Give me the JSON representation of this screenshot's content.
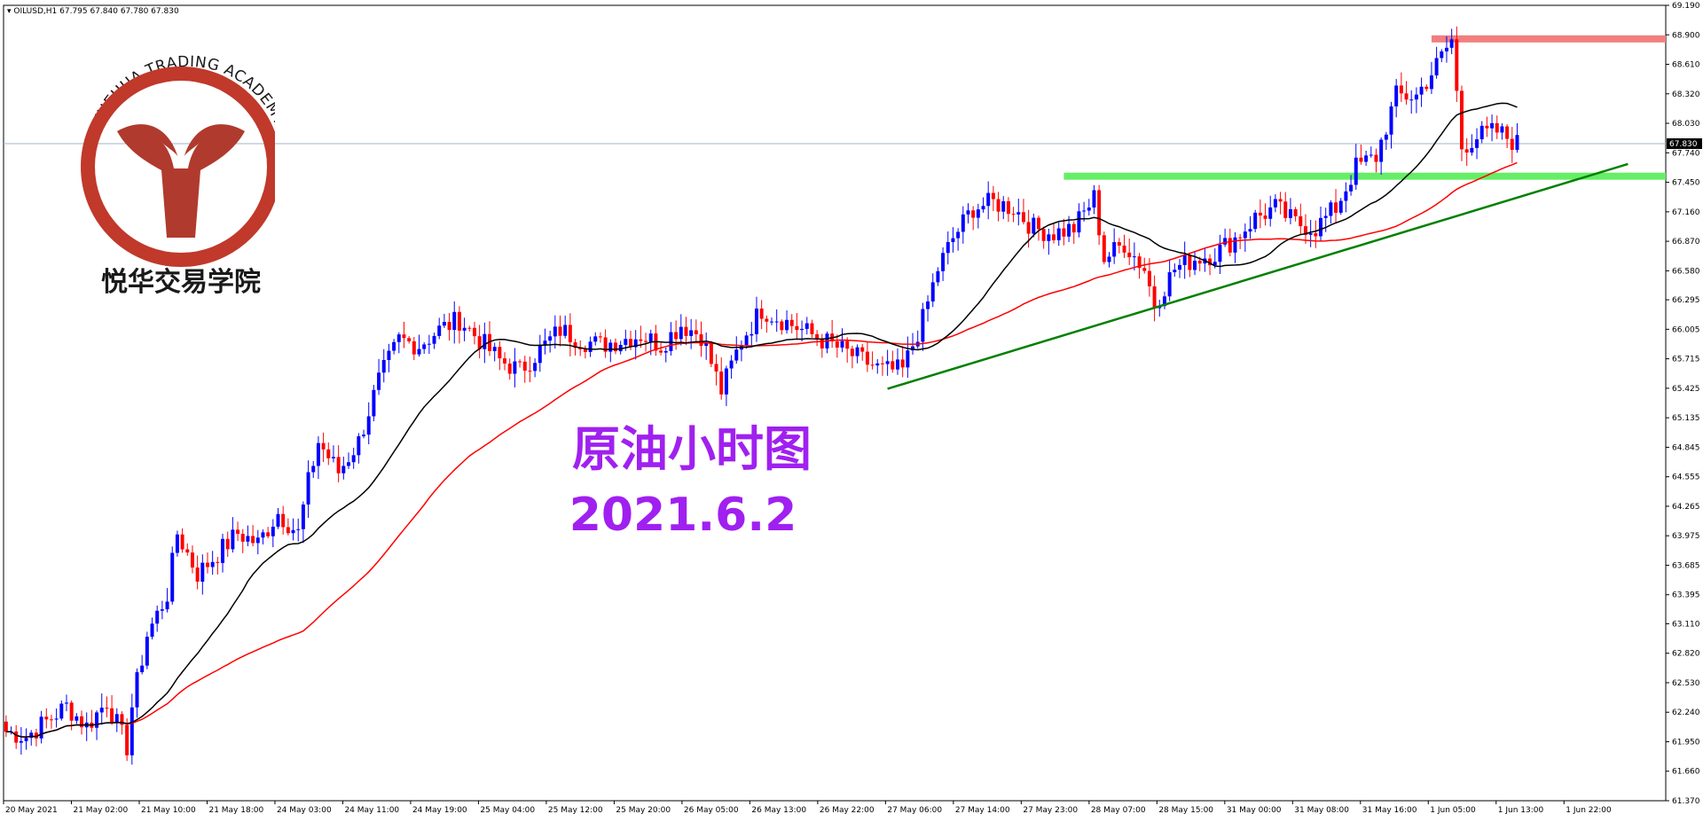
{
  "header": {
    "symbol_line": "OILUSD,H1  67.795 67.840 67.780 67.830"
  },
  "logo": {
    "arc_text": "YUEHUA TRADING ACADEMY",
    "chinese_text": "悦华交易学院",
    "colors": {
      "ring": "#c0392b",
      "mark": "#b03a2e",
      "text": "#1a1a1a"
    }
  },
  "annotation": {
    "title": "原油小时图",
    "date": "2021.6.2",
    "color": "#a020f0"
  },
  "price_label": "67.830",
  "chart_data": {
    "type": "candlestick",
    "title": "",
    "ylim": [
      61.37,
      69.19
    ],
    "y_ticks": [
      "69.190",
      "68.900",
      "68.610",
      "68.320",
      "68.030",
      "67.740",
      "67.450",
      "67.160",
      "66.870",
      "66.580",
      "66.295",
      "66.005",
      "65.715",
      "65.425",
      "65.135",
      "64.845",
      "64.555",
      "64.265",
      "63.975",
      "63.685",
      "63.395",
      "63.110",
      "62.820",
      "62.530",
      "62.240",
      "61.950",
      "61.660",
      "61.370"
    ],
    "x_labels": [
      "20 May 2021",
      "21 May 02:00",
      "21 May 10:00",
      "21 May 18:00",
      "24 May 03:00",
      "24 May 11:00",
      "24 May 19:00",
      "25 May 04:00",
      "25 May 12:00",
      "25 May 20:00",
      "26 May 05:00",
      "26 May 13:00",
      "26 May 22:00",
      "27 May 06:00",
      "27 May 14:00",
      "27 May 23:00",
      "28 May 07:00",
      "28 May 15:00",
      "31 May 00:00",
      "31 May 08:00",
      "31 May 16:00",
      "1 Jun 05:00",
      "1 Jun 13:00",
      "1 Jun 22:00"
    ],
    "last_price": 67.83,
    "current_price_line": 67.83,
    "colors": {
      "bull": "#0000ff",
      "bear": "#ff0000",
      "ma_fast": "#000000",
      "ma_slow": "#ff0000",
      "resistance": "#f08080",
      "support": "#66ee66",
      "trendline": "#008000",
      "price_line": "#a0b4c8"
    },
    "levels": {
      "resistance": 68.86,
      "support": 67.51
    },
    "trendline": {
      "from": {
        "bar": 175,
        "price": 65.42
      },
      "to": {
        "bar": 322,
        "price": 67.63
      }
    },
    "anchors": [
      [
        0,
        62.05
      ],
      [
        4,
        62.0
      ],
      [
        8,
        62.15
      ],
      [
        12,
        62.3
      ],
      [
        16,
        62.1
      ],
      [
        20,
        62.35
      ],
      [
        24,
        61.9
      ],
      [
        25,
        62.3
      ],
      [
        28,
        63.0
      ],
      [
        32,
        63.4
      ],
      [
        34,
        64.0
      ],
      [
        38,
        63.6
      ],
      [
        42,
        63.8
      ],
      [
        46,
        64.0
      ],
      [
        50,
        63.9
      ],
      [
        54,
        64.2
      ],
      [
        58,
        64.0
      ],
      [
        60,
        64.5
      ],
      [
        62,
        64.9
      ],
      [
        66,
        64.6
      ],
      [
        70,
        64.9
      ],
      [
        74,
        65.5
      ],
      [
        76,
        65.7
      ],
      [
        78,
        65.9
      ],
      [
        82,
        65.85
      ],
      [
        86,
        66.0
      ],
      [
        90,
        66.1
      ],
      [
        94,
        65.9
      ],
      [
        98,
        65.7
      ],
      [
        102,
        65.6
      ],
      [
        106,
        65.8
      ],
      [
        110,
        66.0
      ],
      [
        114,
        65.9
      ],
      [
        118,
        65.85
      ],
      [
        122,
        65.9
      ],
      [
        126,
        65.95
      ],
      [
        130,
        65.85
      ],
      [
        134,
        66.05
      ],
      [
        138,
        65.95
      ],
      [
        142,
        65.4
      ],
      [
        146,
        65.9
      ],
      [
        150,
        66.2
      ],
      [
        154,
        66.1
      ],
      [
        158,
        66.0
      ],
      [
        162,
        65.9
      ],
      [
        166,
        65.8
      ],
      [
        170,
        65.7
      ],
      [
        174,
        65.6
      ],
      [
        178,
        65.6
      ],
      [
        182,
        66.1
      ],
      [
        185,
        66.6
      ],
      [
        188,
        66.9
      ],
      [
        192,
        67.2
      ],
      [
        196,
        67.25
      ],
      [
        200,
        67.2
      ],
      [
        204,
        67.0
      ],
      [
        208,
        66.95
      ],
      [
        212,
        67.0
      ],
      [
        216,
        67.3
      ],
      [
        218,
        66.7
      ],
      [
        222,
        66.85
      ],
      [
        226,
        66.6
      ],
      [
        228,
        66.25
      ],
      [
        232,
        66.6
      ],
      [
        236,
        66.7
      ],
      [
        240,
        66.75
      ],
      [
        244,
        66.9
      ],
      [
        248,
        67.1
      ],
      [
        252,
        67.2
      ],
      [
        256,
        67.05
      ],
      [
        260,
        67.0
      ],
      [
        264,
        67.2
      ],
      [
        268,
        67.6
      ],
      [
        272,
        67.7
      ],
      [
        276,
        68.3
      ],
      [
        280,
        68.3
      ],
      [
        284,
        68.6
      ],
      [
        287,
        68.85
      ],
      [
        289,
        67.8
      ],
      [
        292,
        67.9
      ],
      [
        296,
        67.95
      ],
      [
        300,
        67.83
      ]
    ],
    "ma_fast_period": 24,
    "ma_slow_period": 60
  }
}
